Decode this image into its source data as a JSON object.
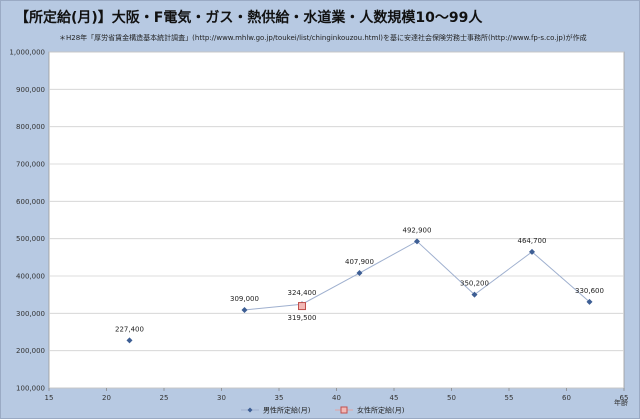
{
  "chart_data": {
    "type": "line",
    "title": "【所定給(月)】大阪・F電気・ガス・熱供給・水道業・人数規模10～99人",
    "note": "＊H28年「厚労省賃金構造基本統計調査」(http://www.mhlw.go.jp/toukei/list/chinginkouzou.html)を基に安達社会保険労務士事務所(http://www.fp-s.co.jp)が作成",
    "xlabel": "年齢",
    "ylabel": "",
    "xlim": [
      15,
      65
    ],
    "ylim": [
      100000,
      1000000
    ],
    "x_ticks": [
      "15",
      "20",
      "25",
      "30",
      "35",
      "40",
      "45",
      "50",
      "55",
      "60",
      "65"
    ],
    "y_ticks": [
      "100,000",
      "200,000",
      "300,000",
      "400,000",
      "500,000",
      "600,000",
      "700,000",
      "800,000",
      "900,000",
      "1,000,000"
    ],
    "grid": "horizontal",
    "legend_position": "bottom",
    "series": [
      {
        "name": "男性所定給(月)",
        "color": "#3d5e94",
        "marker": "diamond",
        "segments": [
          [
            {
              "x": 22,
              "y": 227400,
              "label": "227,400"
            }
          ],
          [
            {
              "x": 32,
              "y": 309000,
              "label": "309,000"
            },
            {
              "x": 37,
              "y": 324400,
              "label": "324,400"
            },
            {
              "x": 42,
              "y": 407900,
              "label": "407,900"
            },
            {
              "x": 47,
              "y": 492900,
              "label": "492,900"
            },
            {
              "x": 52,
              "y": 350200,
              "label": "350,200"
            },
            {
              "x": 57,
              "y": 464700,
              "label": "464,700"
            },
            {
              "x": 62,
              "y": 330600,
              "label": "330,600"
            }
          ]
        ]
      },
      {
        "name": "女性所定給(月)",
        "color": "#c0504d",
        "marker": "square",
        "segments": [
          [
            {
              "x": 37,
              "y": 319500,
              "label": "319,500"
            }
          ]
        ]
      }
    ]
  }
}
